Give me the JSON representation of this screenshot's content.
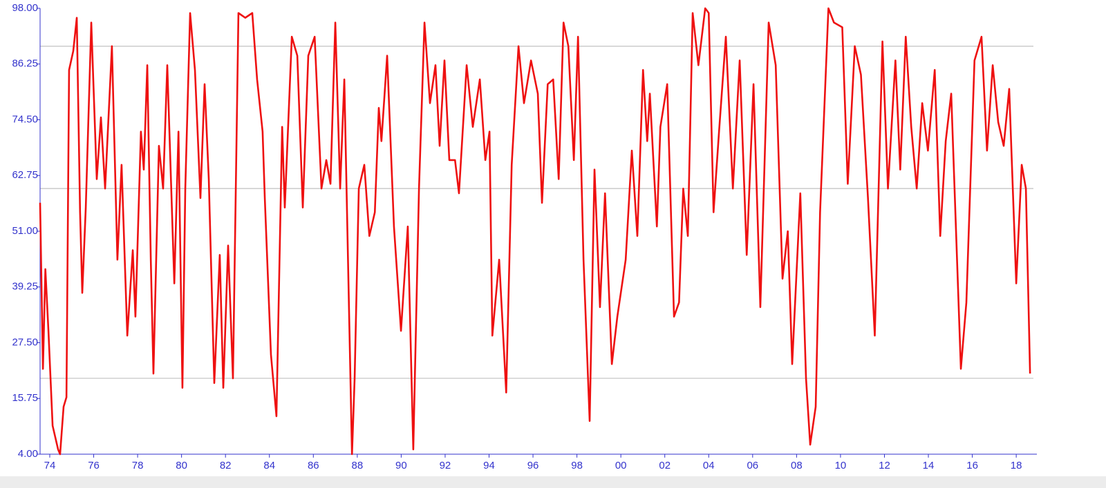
{
  "chart_data": {
    "type": "line",
    "x": [
      1973.56,
      1973.69,
      1973.8,
      1973.94,
      1974.13,
      1974.38,
      1974.47,
      1974.63,
      1974.76,
      1974.88,
      1975.07,
      1975.23,
      1975.38,
      1975.48,
      1975.64,
      1975.89,
      1976.14,
      1976.33,
      1976.52,
      1976.83,
      1977.08,
      1977.27,
      1977.53,
      1977.78,
      1977.9,
      1978.15,
      1978.28,
      1978.44,
      1978.6,
      1978.72,
      1978.97,
      1979.16,
      1979.35,
      1979.67,
      1979.86,
      1980.04,
      1980.17,
      1980.39,
      1980.61,
      1980.86,
      1981.05,
      1981.24,
      1981.49,
      1981.74,
      1981.9,
      1982.12,
      1982.34,
      1982.59,
      1982.9,
      1983.22,
      1983.44,
      1983.69,
      1983.79,
      1984.07,
      1984.32,
      1984.58,
      1984.7,
      1985.02,
      1985.27,
      1985.52,
      1985.77,
      1986.06,
      1986.37,
      1986.59,
      1986.78,
      1987.0,
      1987.22,
      1987.41,
      1987.6,
      1987.76,
      1987.88,
      1988.07,
      1988.32,
      1988.55,
      1988.8,
      1988.98,
      1989.1,
      1989.36,
      1989.67,
      1989.99,
      1990.3,
      1990.55,
      1990.81,
      1991.06,
      1991.31,
      1991.56,
      1991.75,
      1991.97,
      1992.19,
      1992.45,
      1992.63,
      1992.98,
      1993.26,
      1993.58,
      1993.83,
      1994.02,
      1994.15,
      1994.46,
      1994.78,
      1995.03,
      1995.34,
      1995.59,
      1995.91,
      1996.22,
      1996.41,
      1996.67,
      1996.92,
      1997.17,
      1997.39,
      1997.61,
      1997.86,
      1998.05,
      1998.3,
      1998.58,
      1998.8,
      1999.05,
      1999.28,
      1999.59,
      1999.84,
      2000.22,
      2000.5,
      2000.75,
      2001.01,
      2001.2,
      2001.32,
      2001.64,
      2001.8,
      2002.11,
      2002.42,
      2002.65,
      2002.84,
      2003.05,
      2003.27,
      2003.53,
      2003.84,
      2004.0,
      2004.22,
      2004.47,
      2004.78,
      2005.1,
      2005.41,
      2005.73,
      2006.04,
      2006.35,
      2006.73,
      2007.05,
      2007.36,
      2007.6,
      2007.8,
      2008.17,
      2008.43,
      2008.62,
      2008.87,
      2009.07,
      2009.45,
      2009.7,
      2010.08,
      2010.33,
      2010.65,
      2010.93,
      2011.25,
      2011.56,
      2011.91,
      2012.16,
      2012.5,
      2012.72,
      2012.97,
      2013.22,
      2013.47,
      2013.72,
      2013.98,
      2014.29,
      2014.54,
      2014.79,
      2015.04,
      2015.48,
      2015.73,
      2016.1,
      2016.42,
      2016.67,
      2016.93,
      2017.18,
      2017.43,
      2017.68,
      2018.0,
      2018.25,
      2018.44,
      2018.63
    ],
    "series": [
      {
        "color": "#ee1111",
        "values": [
          57,
          22,
          43,
          30,
          10,
          5,
          4,
          14,
          16,
          85,
          89,
          96,
          55,
          38,
          56,
          95,
          62,
          75,
          60,
          90,
          45,
          65,
          29,
          47,
          33,
          72,
          64,
          86,
          45,
          21,
          69,
          60,
          86,
          40,
          72,
          18,
          60,
          97,
          85,
          58,
          82,
          62,
          19,
          46,
          18,
          48,
          20,
          97,
          96,
          97,
          83,
          72,
          58,
          25,
          12,
          73,
          56,
          92,
          88,
          56,
          88,
          92,
          60,
          66,
          61,
          95,
          60,
          83,
          40,
          4,
          20,
          60,
          65,
          50,
          55,
          77,
          70,
          88,
          52,
          30,
          52,
          5,
          60,
          95,
          78,
          86,
          69,
          87,
          66,
          66,
          59,
          86,
          73,
          83,
          66,
          72,
          29,
          45,
          17,
          65,
          90,
          78,
          87,
          80,
          57,
          82,
          83,
          62,
          95,
          90,
          66,
          92,
          45,
          11,
          64,
          35,
          59,
          23,
          33,
          45,
          68,
          50,
          85,
          70,
          80,
          52,
          73,
          82,
          33,
          36,
          60,
          50,
          97,
          86,
          98,
          97,
          55,
          72,
          92,
          60,
          87,
          46,
          82,
          35,
          95,
          86,
          41,
          51,
          23,
          59,
          20,
          6,
          14,
          55,
          98,
          95,
          94,
          61,
          90,
          84,
          58,
          29,
          91,
          60,
          87,
          64,
          92,
          73,
          60,
          78,
          68,
          85,
          50,
          70,
          80,
          22,
          36,
          87,
          92,
          68,
          86,
          74,
          69,
          81,
          40,
          65,
          60,
          21
        ]
      }
    ],
    "xlim": [
      1973.56,
      2018.94
    ],
    "xticks": [
      {
        "value": 1974,
        "label": "74"
      },
      {
        "value": 1976,
        "label": "76"
      },
      {
        "value": 1978,
        "label": "78"
      },
      {
        "value": 1980,
        "label": "80"
      },
      {
        "value": 1982,
        "label": "82"
      },
      {
        "value": 1984,
        "label": "84"
      },
      {
        "value": 1986,
        "label": "86"
      },
      {
        "value": 1988,
        "label": "88"
      },
      {
        "value": 1990,
        "label": "90"
      },
      {
        "value": 1992,
        "label": "92"
      },
      {
        "value": 1994,
        "label": "94"
      },
      {
        "value": 1996,
        "label": "96"
      },
      {
        "value": 1998,
        "label": "98"
      },
      {
        "value": 2000,
        "label": "00"
      },
      {
        "value": 2002,
        "label": "02"
      },
      {
        "value": 2004,
        "label": "04"
      },
      {
        "value": 2006,
        "label": "06"
      },
      {
        "value": 2008,
        "label": "08"
      },
      {
        "value": 2010,
        "label": "10"
      },
      {
        "value": 2012,
        "label": "12"
      },
      {
        "value": 2014,
        "label": "14"
      },
      {
        "value": 2016,
        "label": "16"
      },
      {
        "value": 2018,
        "label": "18"
      }
    ],
    "ylim": [
      4,
      98
    ],
    "yticks": [
      {
        "value": 4,
        "label": "4.00"
      },
      {
        "value": 15.75,
        "label": "15.75"
      },
      {
        "value": 27.5,
        "label": "27.50"
      },
      {
        "value": 39.25,
        "label": "39.25"
      },
      {
        "value": 51,
        "label": "51.00"
      },
      {
        "value": 62.75,
        "label": "62.75"
      },
      {
        "value": 74.5,
        "label": "74.50"
      },
      {
        "value": 86.25,
        "label": "86.25"
      },
      {
        "value": 98,
        "label": "98.00"
      }
    ],
    "reference_lines": [
      90,
      60,
      20
    ],
    "reference_color": "#c0c0c0",
    "axis_color": "#3333cc"
  }
}
